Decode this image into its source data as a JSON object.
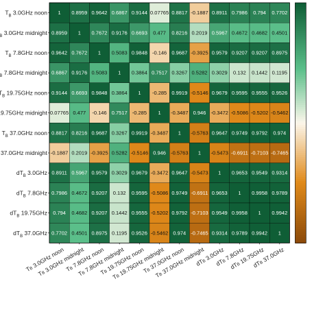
{
  "chart_data": {
    "type": "heatmap",
    "title": "",
    "xlabel": "",
    "ylabel": "",
    "row_labels": [
      {
        "main": "T",
        "sub": "B",
        "rest": " 3.0GHz noon"
      },
      {
        "main": "T",
        "sub": "B",
        "rest": " 3.0GHz midnight"
      },
      {
        "main": "T",
        "sub": "B",
        "rest": " 7.8GHz noon"
      },
      {
        "main": "T",
        "sub": "B",
        "rest": " 7.8GHz midnight"
      },
      {
        "main": "T",
        "sub": "B",
        "rest": " 19.75GHz noon"
      },
      {
        "main": "T",
        "sub": "B",
        "rest": " 19.75GHz midnight"
      },
      {
        "main": "T",
        "sub": "B",
        "rest": " 37.0GHz noon"
      },
      {
        "main": "T",
        "sub": "B",
        "rest": " 37.0GHz midnight"
      },
      {
        "main": "dT",
        "sub": "B",
        "rest": " 3.0GHz"
      },
      {
        "main": "dT",
        "sub": "B",
        "rest": " 7.8GHz"
      },
      {
        "main": "dT",
        "sub": "B",
        "rest": " 19.75GHz"
      },
      {
        "main": "dT",
        "sub": "B",
        "rest": " 37.0GHz"
      }
    ],
    "col_labels": [
      {
        "main": "T",
        "sub": "B",
        "rest": " 3.0GHz noon"
      },
      {
        "main": "T",
        "sub": "B",
        "rest": " 3.0GHz midnight"
      },
      {
        "main": "T",
        "sub": "B",
        "rest": " 7.8GHz noon"
      },
      {
        "main": "T",
        "sub": "B",
        "rest": " 7.8GHz midnight"
      },
      {
        "main": "T",
        "sub": "B",
        "rest": " 19.75GHz noon"
      },
      {
        "main": "T",
        "sub": "B",
        "rest": " 19.75GHz midnight"
      },
      {
        "main": "T",
        "sub": "B",
        "rest": " 37.0GHz noon"
      },
      {
        "main": "T",
        "sub": "B",
        "rest": " 37.0GHz midnight"
      },
      {
        "main": "dT",
        "sub": "B",
        "rest": " 3.0GHz"
      },
      {
        "main": "dT",
        "sub": "B",
        "rest": " 7.8GHz"
      },
      {
        "main": "dT",
        "sub": "B",
        "rest": " 19.75GHz"
      },
      {
        "main": "dT",
        "sub": "B",
        "rest": " 37.0GHz"
      }
    ],
    "values": [
      [
        "1",
        "0.8959",
        "0.9642",
        "0.6867",
        "0.9144",
        "0.07765",
        "0.8817",
        "-0.1887",
        "0.8911",
        "0.7986",
        "0.794",
        "0.7702"
      ],
      [
        "0.8959",
        "1",
        "0.7672",
        "0.9176",
        "0.6693",
        "0.477",
        "0.8216",
        "0.2019",
        "0.5967",
        "0.4672",
        "0.4682",
        "0.4501"
      ],
      [
        "0.9642",
        "0.7672",
        "1",
        "0.5083",
        "0.9848",
        "-0.146",
        "0.9687",
        "-0.3925",
        "0.9579",
        "0.9207",
        "0.9207",
        "0.8975"
      ],
      [
        "0.6867",
        "0.9176",
        "0.5083",
        "1",
        "0.3864",
        "0.7517",
        "0.3267",
        "0.5282",
        "0.3029",
        "0.132",
        "0.1442",
        "0.1195"
      ],
      [
        "0.9144",
        "0.6693",
        "0.9848",
        "0.3864",
        "1",
        "-0.285",
        "0.9919",
        "-0.5146",
        "0.9679",
        "0.9595",
        "0.9555",
        "0.9526"
      ],
      [
        "0.07765",
        "0.477",
        "-0.146",
        "0.7517",
        "-0.285",
        "1",
        "-0.3487",
        "0.946",
        "-0.3472",
        "-0.5086",
        "-0.5202",
        "-0.5462"
      ],
      [
        "0.8817",
        "0.8216",
        "0.9687",
        "0.3267",
        "0.9919",
        "-0.3487",
        "1",
        "-0.5763",
        "0.9647",
        "0.9749",
        "0.9792",
        "0.974"
      ],
      [
        "-0.1887",
        "0.2019",
        "-0.3925",
        "0.5282",
        "-0.5146",
        "0.946",
        "-0.5763",
        "1",
        "-0.5473",
        "-0.6911",
        "-0.7103",
        "-0.7465"
      ],
      [
        "0.8911",
        "0.5967",
        "0.9579",
        "0.3029",
        "0.9679",
        "-0.3472",
        "0.9647",
        "-0.5473",
        "1",
        "0.9653",
        "0.9549",
        "0.9314"
      ],
      [
        "0.7986",
        "0.4672",
        "0.9207",
        "0.132",
        "0.9595",
        "-0.5086",
        "0.9749",
        "-0.6911",
        "0.9653",
        "1",
        "0.9958",
        "0.9789"
      ],
      [
        "0.794",
        "0.4682",
        "0.9207",
        "0.1442",
        "0.9555",
        "-0.5202",
        "0.9792",
        "-0.7103",
        "0.9549",
        "0.9958",
        "1",
        "0.9942"
      ],
      [
        "0.7702",
        "0.4501",
        "0.8975",
        "0.1195",
        "0.9526",
        "-0.5462",
        "0.974",
        "-0.7465",
        "0.9314",
        "0.9789",
        "0.9942",
        "1"
      ]
    ],
    "colorbar": {
      "min": -1,
      "max": 1,
      "ticks": []
    },
    "colors": {
      "negative_strong": "#8c4a0a",
      "negative_mid": "#e08a1a",
      "neutral": "#fbf6ea",
      "positive_mid": "#5bbf8a",
      "positive_strong": "#0f5e36",
      "text_dark": "#111111",
      "text_light": "#ffffff"
    }
  }
}
